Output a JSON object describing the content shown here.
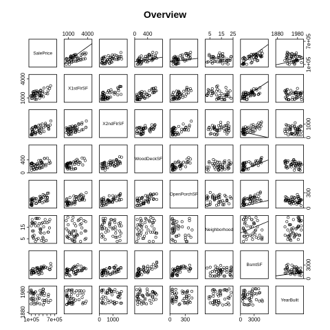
{
  "chart_data": {
    "type": "scatter",
    "title": "Overview",
    "variables": [
      "SalePrice",
      "X1stFlrSF",
      "X2ndFlrSF",
      "WoodDeckSF",
      "OpenPorchSF",
      "Neighborhood",
      "BsmtSF",
      "YearBuilt"
    ],
    "ranges": {
      "SalePrice": [
        35000,
        755000
      ],
      "X1stFlrSF": [
        330,
        4700
      ],
      "X2ndFlrSF": [
        0,
        2065
      ],
      "WoodDeckSF": [
        0,
        860
      ],
      "OpenPorchSF": [
        0,
        545
      ],
      "Neighborhood": [
        1,
        25
      ],
      "BsmtSF": [
        0,
        6100
      ],
      "YearBuilt": [
        1872,
        2010
      ]
    },
    "axis_ticks": {
      "X1stFlrSF": {
        "side": "top",
        "values": [
          1000,
          4000
        ],
        "labels": [
          "1000",
          "4000"
        ]
      },
      "WoodDeckSF": {
        "side": "top",
        "values": [
          0,
          400
        ],
        "labels": [
          "0",
          "400"
        ]
      },
      "Neighborhood": {
        "side": "top",
        "values": [
          5,
          15,
          25
        ],
        "labels": [
          "5",
          "15",
          "25"
        ]
      },
      "YearBuilt": {
        "side": "top",
        "values": [
          1880,
          1980
        ],
        "labels": [
          "1880",
          "1980"
        ]
      },
      "SalePrice": {
        "side": "bottom",
        "values": [
          100000,
          700000
        ],
        "labels": [
          "1e+05",
          "7e+05"
        ],
        "minor": [
          200000,
          300000,
          400000,
          500000,
          600000
        ]
      },
      "X2ndFlrSF": {
        "side": "bottom",
        "values": [
          0,
          1000
        ],
        "labels": [
          "0",
          "1000"
        ]
      },
      "OpenPorchSF": {
        "side": "bottom",
        "values": [
          0,
          300
        ],
        "labels": [
          "0",
          "300"
        ]
      },
      "BsmtSF": {
        "side": "bottom",
        "values": [
          0,
          3000
        ],
        "labels": [
          "0",
          "3000"
        ]
      }
    },
    "left_ticks": {
      "X1stFlrSF": {
        "values": [
          1000,
          4000
        ],
        "labels": [
          "1000",
          "4000"
        ]
      },
      "WoodDeckSF": {
        "values": [
          0,
          400
        ],
        "labels": [
          "0",
          "400"
        ]
      },
      "Neighborhood": {
        "values": [
          5,
          15
        ],
        "labels": [
          "5",
          "15"
        ]
      },
      "YearBuilt": {
        "values": [
          1880,
          1980
        ],
        "labels": [
          "1880",
          "1980"
        ]
      }
    },
    "right_ticks": {
      "SalePrice": {
        "values": [
          100000,
          700000
        ],
        "labels": [
          "1e+05",
          "7e+05"
        ]
      },
      "X2ndFlrSF": {
        "values": [
          0,
          1000
        ],
        "labels": [
          "0",
          "1000"
        ]
      },
      "OpenPorchSF": {
        "values": [
          0,
          300
        ],
        "labels": [
          "0",
          "300"
        ]
      },
      "BsmtSF": {
        "values": [
          0,
          3000
        ],
        "labels": [
          "0",
          "3000"
        ]
      }
    },
    "fit_lines": [
      {
        "row": "SalePrice",
        "col": "X1stFlrSF",
        "from": [
          330,
          120000
        ],
        "to": [
          4700,
          640000
        ]
      },
      {
        "row": "SalePrice",
        "col": "WoodDeckSF",
        "from": [
          0,
          170000
        ],
        "to": [
          860,
          290000
        ]
      },
      {
        "row": "SalePrice",
        "col": "OpenPorchSF",
        "from": [
          0,
          170000
        ],
        "to": [
          545,
          260000
        ]
      },
      {
        "row": "SalePrice",
        "col": "BsmtSF",
        "from": [
          0,
          100000
        ],
        "to": [
          6100,
          620000
        ]
      },
      {
        "row": "SalePrice",
        "col": "YearBuilt",
        "from": [
          1872,
          90000
        ],
        "to": [
          2010,
          250000
        ]
      },
      {
        "row": "X1stFlrSF",
        "col": "BsmtSF",
        "from": [
          0,
          700
        ],
        "to": [
          6100,
          3600
        ]
      },
      {
        "row": "X2ndFlrSF",
        "col": "BsmtSF",
        "from": [
          0,
          450
        ],
        "to": [
          6100,
          0
        ]
      },
      {
        "row": "WoodDeckSF",
        "col": "BsmtSF",
        "from": [
          0,
          60
        ],
        "to": [
          6100,
          400
        ]
      },
      {
        "row": "OpenPorchSF",
        "col": "BsmtSF",
        "from": [
          0,
          30
        ],
        "to": [
          6100,
          150
        ]
      },
      {
        "row": "Neighborhood",
        "col": "BsmtSF",
        "from": [
          0,
          10
        ],
        "to": [
          6100,
          20
        ]
      },
      {
        "row": "BsmtSF",
        "col": "YearBuilt",
        "from": [
          1872,
          600
        ],
        "to": [
          2010,
          1400
        ]
      }
    ]
  }
}
